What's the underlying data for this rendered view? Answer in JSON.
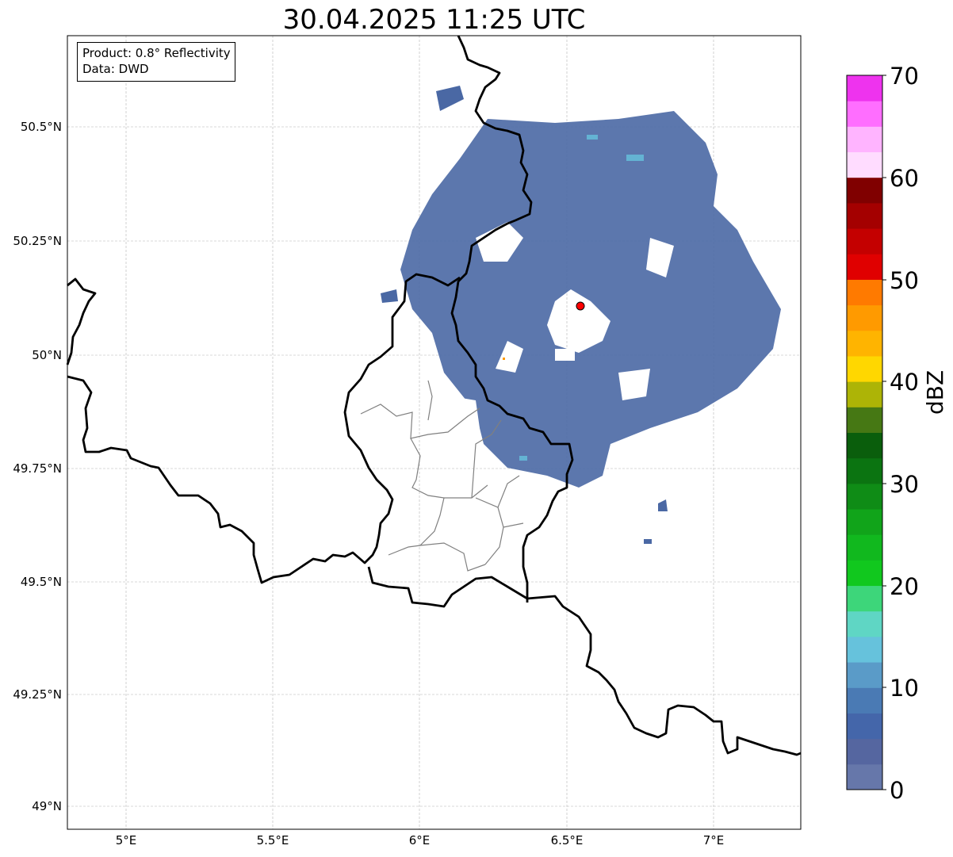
{
  "title": "30.04.2025 11:25 UTC",
  "legend": {
    "product": "Product: 0.8° Reflectivity",
    "data": "Data: DWD"
  },
  "axes": {
    "y_ticks": [
      "50.5°N",
      "50.25°N",
      "50°N",
      "49.75°N",
      "49.5°N",
      "49.25°N",
      "49°N"
    ],
    "x_ticks": [
      "5°E",
      "5.5°E",
      "6°E",
      "6.5°E",
      "7°E"
    ]
  },
  "colorbar": {
    "label": "dBZ",
    "ticks": [
      "0",
      "10",
      "20",
      "30",
      "40",
      "50",
      "60",
      "70"
    ],
    "colors": [
      "#6677aa",
      "#5566a0",
      "#4466aa",
      "#4a7ab4",
      "#5a9bc8",
      "#66c2dc",
      "#5fd6c4",
      "#3dd67a",
      "#11c81e",
      "#11b81e",
      "#11a41a",
      "#0f8c16",
      "#0b7411",
      "#0a5e0c",
      "#467814",
      "#adb406",
      "#ffd700",
      "#ffb400",
      "#ff9a00",
      "#ff7a00",
      "#e00000",
      "#c40000",
      "#a40000",
      "#800000",
      "#ffdcff",
      "#ffb4ff",
      "#ff6eff",
      "#ee33ee"
    ]
  },
  "radar_site_color": "#ff0000"
}
